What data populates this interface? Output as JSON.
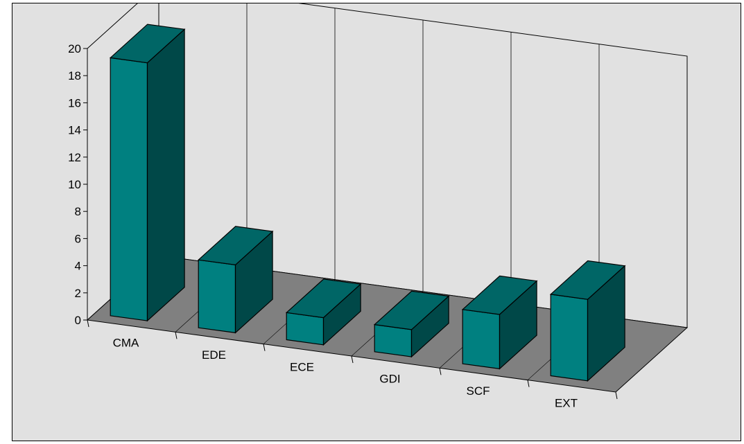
{
  "chart_data": {
    "type": "bar",
    "categories": [
      "CMA",
      "EDE",
      "ECE",
      "GDI",
      "SCF",
      "EXT"
    ],
    "values": [
      19,
      5,
      2,
      2,
      4,
      6
    ],
    "yticks": [
      "0",
      "2",
      "4",
      "6",
      "8",
      "10",
      "12",
      "14",
      "16",
      "18",
      "20"
    ],
    "ylim": [
      0,
      20
    ],
    "title": "",
    "xlabel": "",
    "ylabel": "",
    "legend": "none",
    "grid": "vertical lines on back wall",
    "colors": {
      "front": "#008080",
      "top": "#006666",
      "side": "#004848",
      "floor": "#808080",
      "background": "#e1e1e1"
    }
  }
}
